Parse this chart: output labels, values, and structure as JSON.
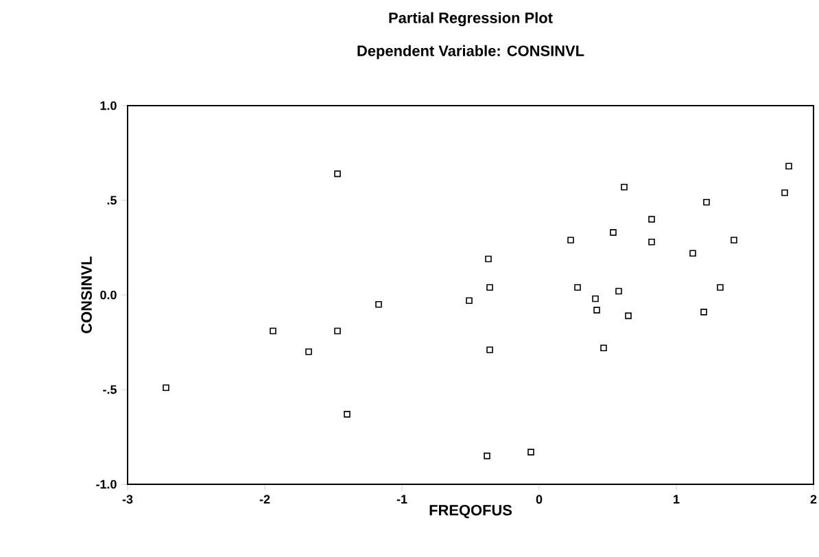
{
  "chart_data": {
    "type": "scatter",
    "title": "Partial Regression Plot",
    "subtitle": "Dependent Variable: CONSINVL",
    "xlabel": "FREQOFUS",
    "ylabel": "CONSINVL",
    "color": "#000000",
    "marker": "square",
    "grid": false,
    "x": [
      -2.72,
      -1.94,
      -1.68,
      -1.47,
      -1.47,
      -1.4,
      -1.17,
      -0.51,
      -0.37,
      -0.36,
      -0.36,
      -0.38,
      -0.06,
      0.23,
      0.28,
      0.41,
      0.42,
      0.47,
      0.54,
      0.62,
      0.58,
      0.65,
      0.82,
      0.82,
      1.12,
      1.22,
      1.2,
      1.32,
      1.42,
      1.79,
      1.82
    ],
    "values": [
      -0.49,
      -0.19,
      -0.3,
      0.64,
      -0.19,
      -0.63,
      -0.05,
      -0.03,
      0.19,
      0.04,
      -0.29,
      -0.85,
      -0.83,
      0.29,
      0.04,
      -0.02,
      -0.08,
      -0.28,
      0.33,
      0.57,
      0.02,
      -0.11,
      0.4,
      0.28,
      0.22,
      0.49,
      -0.09,
      0.04,
      0.29,
      0.54,
      0.68
    ],
    "xlim": [
      -3,
      2
    ],
    "xticks": [
      -3,
      -2,
      -1,
      0,
      1,
      2
    ],
    "ylim": [
      -1,
      1
    ],
    "yticks": [
      {
        "value": -1,
        "label": "-1.0"
      },
      {
        "value": -0.5,
        "label": "-.5"
      },
      {
        "value": 0,
        "label": "0.0"
      },
      {
        "value": 0.5,
        "label": ".5"
      },
      {
        "value": 1,
        "label": "1.0"
      }
    ]
  }
}
